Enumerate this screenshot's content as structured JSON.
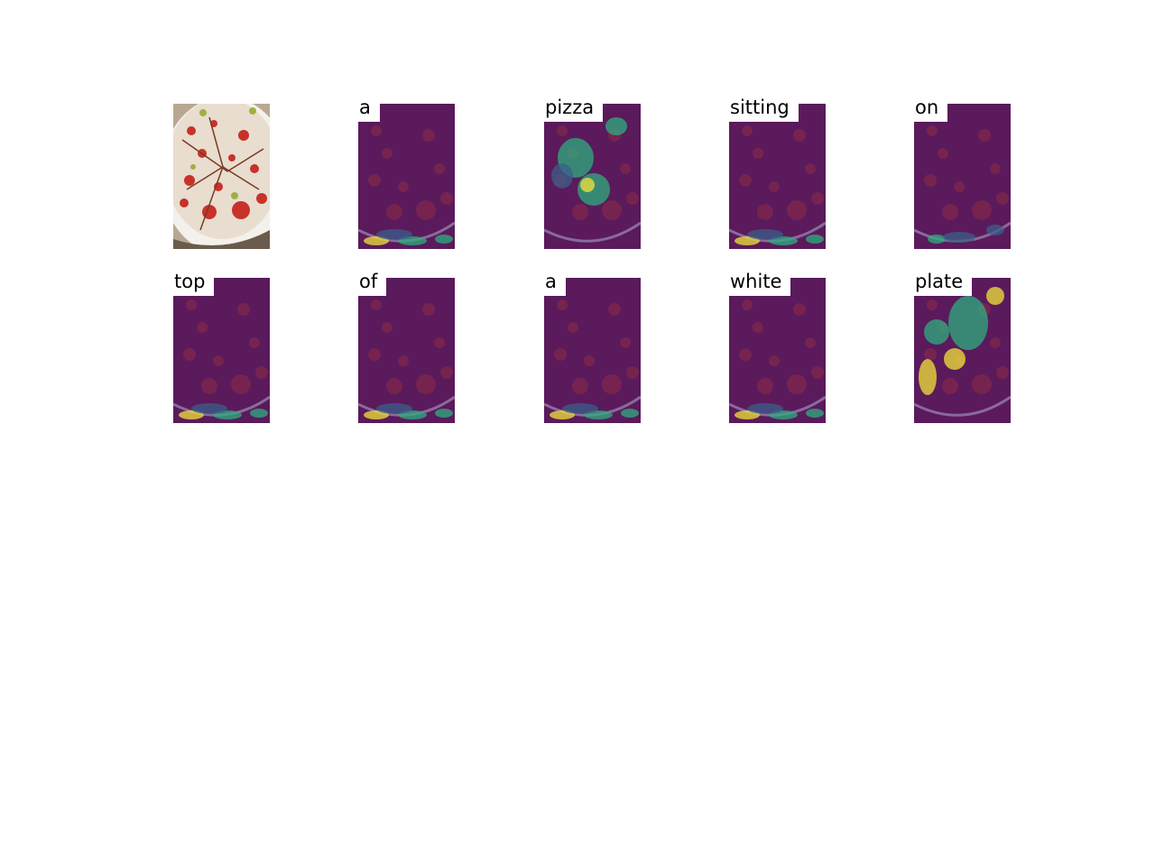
{
  "original": {
    "name": "pizza-photo"
  },
  "words": [
    {
      "word": "a",
      "focus": "plate-edge-bottom"
    },
    {
      "word": "pizza",
      "focus": "pizza-center"
    },
    {
      "word": "sitting",
      "focus": "plate-edge-bottom"
    },
    {
      "word": "on",
      "focus": "plate-edge-bottom-left"
    },
    {
      "word": "top",
      "focus": "plate-edge-bottom"
    },
    {
      "word": "of",
      "focus": "plate-edge-bottom"
    },
    {
      "word": "a",
      "focus": "plate-edge-bottom"
    },
    {
      "word": "white",
      "focus": "plate-edge-bottom"
    },
    {
      "word": "plate",
      "focus": "pizza-scattered"
    }
  ],
  "colors": {
    "overlay": "#5a1a5c",
    "heat_low": "#3b5f8a",
    "heat_mid": "#2fae7f",
    "heat_high": "#f2e33a"
  }
}
